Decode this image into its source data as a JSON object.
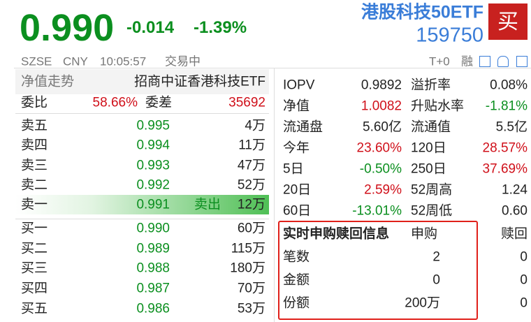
{
  "header": {
    "price": "0.990",
    "change": "-0.014",
    "change_pct": "-1.39%",
    "name": "港股科技50ETF",
    "code": "159750",
    "buy_button": "买"
  },
  "status": {
    "exchange": "SZSE",
    "currency": "CNY",
    "time": "10:05:57",
    "state": "交易中",
    "t0": "T+0",
    "margin": "融"
  },
  "order_book": {
    "tab": "净值走势",
    "fund_name": "招商中证香港科技ETF",
    "ratio_label": "委比",
    "ratio": "58.66%",
    "diff_label": "委差",
    "diff": "35692",
    "asks": [
      {
        "label": "卖五",
        "price": "0.995",
        "volume": "4万"
      },
      {
        "label": "卖四",
        "price": "0.994",
        "volume": "11万"
      },
      {
        "label": "卖三",
        "price": "0.993",
        "volume": "47万"
      },
      {
        "label": "卖二",
        "price": "0.992",
        "volume": "52万"
      },
      {
        "label": "卖一",
        "price": "0.991",
        "volume": "12万"
      }
    ],
    "ask_marker": "卖出",
    "bids": [
      {
        "label": "买一",
        "price": "0.990",
        "volume": "60万"
      },
      {
        "label": "买二",
        "price": "0.989",
        "volume": "115万"
      },
      {
        "label": "买三",
        "price": "0.988",
        "volume": "180万"
      },
      {
        "label": "买四",
        "price": "0.987",
        "volume": "70万"
      },
      {
        "label": "买五",
        "price": "0.986",
        "volume": "53万"
      }
    ]
  },
  "stats": {
    "rows": [
      [
        "IOPV",
        "0.9892",
        "溢折率",
        "0.08%"
      ],
      [
        "净值",
        "1.0082",
        "升贴水率",
        "-1.81%"
      ],
      [
        "流通盘",
        "5.60亿",
        "流通值",
        "5.5亿"
      ],
      [
        "今年",
        "23.60%",
        "120日",
        "28.57%"
      ],
      [
        "5日",
        "-0.50%",
        "250日",
        "37.69%"
      ],
      [
        "20日",
        "2.59%",
        "52周高",
        "1.24"
      ],
      [
        "60日",
        "-13.01%",
        "52周低",
        "0.60"
      ]
    ]
  },
  "redemption": {
    "title": "实时申购赎回信息",
    "columns": [
      "申购",
      "赎回"
    ],
    "rows": [
      [
        "笔数",
        "2",
        "0"
      ],
      [
        "金额",
        "0",
        "0"
      ],
      [
        "份额",
        "200万",
        "0"
      ]
    ]
  }
}
